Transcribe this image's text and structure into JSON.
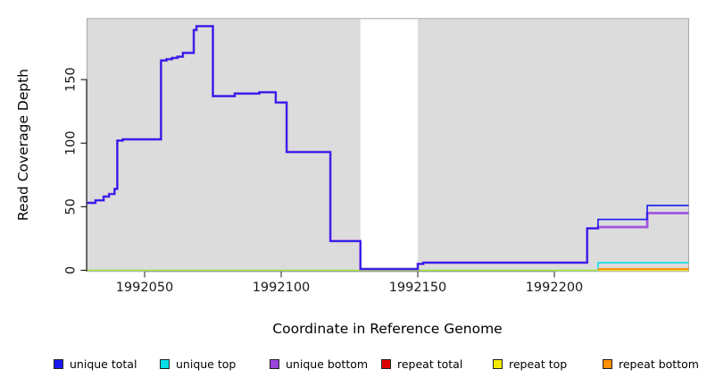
{
  "chart_data": {
    "type": "line",
    "subtype": "step-after",
    "title": "",
    "xlabel": "Coordinate in Reference Genome",
    "ylabel": "Read Coverage Depth",
    "xlim": [
      1992029,
      1992249
    ],
    "ylim": [
      0,
      198
    ],
    "x_ticks": [
      1992050,
      1992100,
      1992150,
      1992200
    ],
    "y_ticks": [
      0,
      50,
      100,
      150
    ],
    "grid": "off",
    "legend_position": "bottom",
    "panel_background": "#dcdcdc",
    "panel_border_color": "#a8a8a8",
    "gap_region": {
      "x_start": 1992129,
      "x_end": 1992150,
      "color": "#ffffff"
    },
    "series": [
      {
        "name": "unique total",
        "color": "#1a1aee",
        "points": [
          [
            1992029,
            53
          ],
          [
            1992032,
            55
          ],
          [
            1992035,
            58
          ],
          [
            1992037,
            60
          ],
          [
            1992039,
            64
          ],
          [
            1992040,
            102
          ],
          [
            1992042,
            103
          ],
          [
            1992056,
            165
          ],
          [
            1992058,
            166
          ],
          [
            1992060,
            167
          ],
          [
            1992062,
            168
          ],
          [
            1992064,
            171
          ],
          [
            1992068,
            189
          ],
          [
            1992069,
            192
          ],
          [
            1992075,
            137
          ],
          [
            1992083,
            139
          ],
          [
            1992092,
            140
          ],
          [
            1992098,
            132
          ],
          [
            1992102,
            93
          ],
          [
            1992118,
            23
          ],
          [
            1992129,
            1
          ],
          [
            1992150,
            5
          ],
          [
            1992152,
            6
          ],
          [
            1992212,
            33
          ],
          [
            1992216,
            40
          ],
          [
            1992234,
            51
          ],
          [
            1992249,
            51
          ]
        ]
      },
      {
        "name": "unique top",
        "color": "#00dfe8",
        "points": [
          [
            1992029,
            0
          ],
          [
            1992216,
            6
          ],
          [
            1992249,
            6
          ]
        ]
      },
      {
        "name": "unique bottom",
        "color": "#9b45dd",
        "points": [
          [
            1992029,
            53
          ],
          [
            1992032,
            55
          ],
          [
            1992035,
            58
          ],
          [
            1992037,
            60
          ],
          [
            1992039,
            64
          ],
          [
            1992040,
            102
          ],
          [
            1992042,
            103
          ],
          [
            1992056,
            165
          ],
          [
            1992058,
            166
          ],
          [
            1992060,
            167
          ],
          [
            1992062,
            168
          ],
          [
            1992064,
            171
          ],
          [
            1992068,
            189
          ],
          [
            1992069,
            192
          ],
          [
            1992075,
            137
          ],
          [
            1992083,
            139
          ],
          [
            1992092,
            140
          ],
          [
            1992098,
            132
          ],
          [
            1992102,
            93
          ],
          [
            1992118,
            23
          ],
          [
            1992129,
            1
          ],
          [
            1992150,
            5
          ],
          [
            1992152,
            6
          ],
          [
            1992212,
            33
          ],
          [
            1992216,
            34
          ],
          [
            1992234,
            45
          ],
          [
            1992249,
            45
          ]
        ]
      },
      {
        "name": "repeat total",
        "color": "#dd0000",
        "points": [
          [
            1992216,
            1
          ],
          [
            1992249,
            1
          ]
        ]
      },
      {
        "name": "repeat top",
        "color": "#f2ea00",
        "points": [
          [
            1992029,
            0
          ],
          [
            1992249,
            0
          ]
        ]
      },
      {
        "name": "repeat bottom",
        "color": "#ff9000",
        "points": [
          [
            1992216,
            1
          ],
          [
            1992249,
            1
          ]
        ]
      }
    ]
  }
}
